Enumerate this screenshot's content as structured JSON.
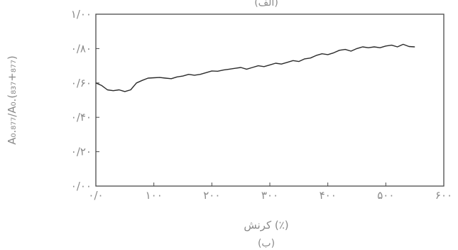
{
  "top_caption": "(الف)",
  "bottom_caption": "(ب)",
  "colors": {
    "line": "#2b2b2b",
    "axis": "#4a4a4a",
    "text": "#8a8a8a"
  },
  "chart_data": {
    "type": "line",
    "xlabel": "کرنش (٪)",
    "ylabel": "A₀.₈₇₇/A₀.(₈₃₇+₈₇₇)",
    "xlim": [
      0,
      600
    ],
    "ylim": [
      0,
      1.0
    ],
    "x_ticks": [
      0,
      100,
      200,
      300,
      400,
      500,
      600
    ],
    "x_tick_labels": [
      "۰/۰",
      "۱۰۰",
      "۲۰۰",
      "۳۰۰",
      "۴۰۰",
      "۵۰۰",
      "۶۰۰"
    ],
    "y_ticks": [
      0,
      0.2,
      0.4,
      0.6,
      0.8,
      1.0
    ],
    "y_tick_labels": [
      "۰/۰۰",
      "۰/۲۰",
      "۰/۴۰",
      "۰/۶۰",
      "۰/۸۰",
      "۱/۰۰"
    ],
    "grid": false,
    "series": [
      {
        "x": [
          0,
          10,
          20,
          30,
          40,
          50,
          60,
          70,
          80,
          90,
          100,
          110,
          120,
          130,
          140,
          150,
          160,
          170,
          180,
          190,
          200,
          210,
          220,
          230,
          240,
          250,
          260,
          270,
          280,
          290,
          300,
          310,
          320,
          330,
          340,
          350,
          360,
          370,
          380,
          390,
          400,
          410,
          420,
          430,
          440,
          450,
          460,
          470,
          480,
          490,
          500,
          510,
          520,
          530,
          540,
          550
        ],
        "y": [
          0.6,
          0.585,
          0.56,
          0.555,
          0.56,
          0.55,
          0.56,
          0.6,
          0.615,
          0.628,
          0.63,
          0.632,
          0.628,
          0.625,
          0.635,
          0.64,
          0.65,
          0.645,
          0.65,
          0.66,
          0.67,
          0.668,
          0.675,
          0.68,
          0.685,
          0.69,
          0.68,
          0.69,
          0.7,
          0.695,
          0.705,
          0.715,
          0.71,
          0.72,
          0.73,
          0.725,
          0.74,
          0.745,
          0.76,
          0.77,
          0.765,
          0.775,
          0.79,
          0.795,
          0.785,
          0.8,
          0.81,
          0.805,
          0.81,
          0.805,
          0.815,
          0.82,
          0.81,
          0.825,
          0.812,
          0.81
        ]
      }
    ]
  }
}
